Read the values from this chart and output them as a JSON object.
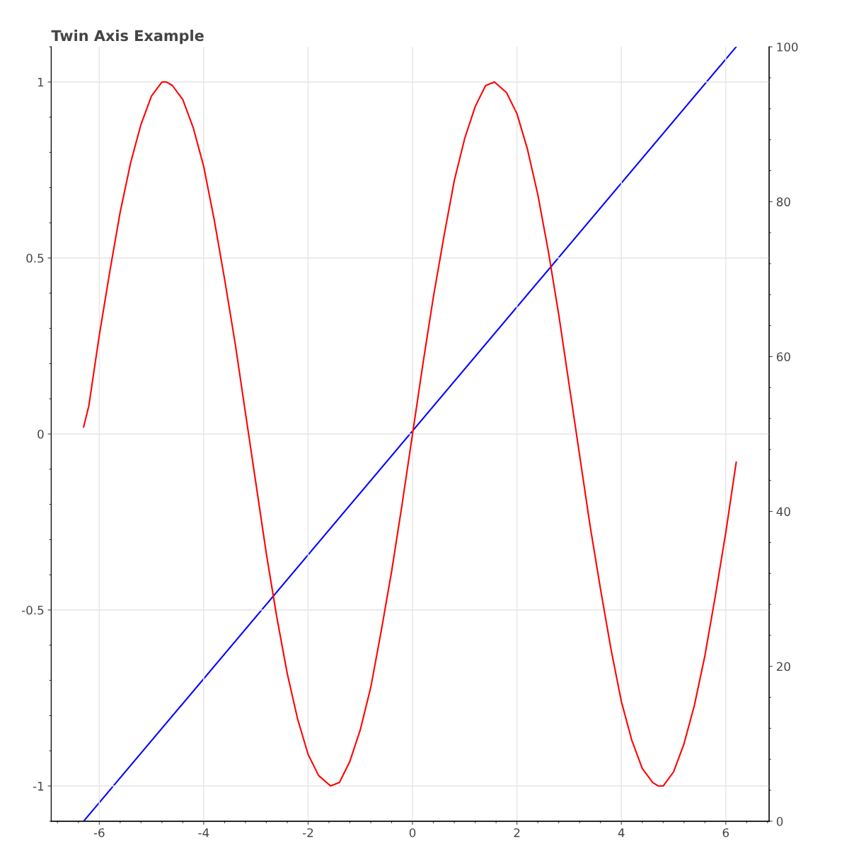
{
  "chart_data": {
    "type": "line",
    "title": "Twin Axis Example",
    "series": [
      {
        "color": "#ff0000",
        "x": [
          -6.3,
          -6.2,
          -6.0,
          -5.8,
          -5.6,
          -5.4,
          -5.2,
          -5.0,
          -4.8,
          -4.71,
          -4.6,
          -4.4,
          -4.2,
          -4.0,
          -3.8,
          -3.6,
          -3.4,
          -3.2,
          -3.0,
          -2.8,
          -2.6,
          -2.4,
          -2.2,
          -2.0,
          -1.8,
          -1.57,
          -1.4,
          -1.2,
          -1.0,
          -0.8,
          -0.6,
          -0.4,
          -0.2,
          0.0,
          0.2,
          0.4,
          0.6,
          0.8,
          1.0,
          1.2,
          1.4,
          1.57,
          1.8,
          2.0,
          2.2,
          2.4,
          2.6,
          2.8,
          3.0,
          3.2,
          3.4,
          3.6,
          3.8,
          4.0,
          4.2,
          4.4,
          4.6,
          4.71,
          4.8,
          5.0,
          5.2,
          5.4,
          5.6,
          5.8,
          6.0,
          6.2
        ],
        "values": [
          0.02,
          0.08,
          0.28,
          0.46,
          0.63,
          0.77,
          0.88,
          0.96,
          1.0,
          1.0,
          0.99,
          0.95,
          0.87,
          0.76,
          0.61,
          0.44,
          0.26,
          0.06,
          -0.14,
          -0.34,
          -0.52,
          -0.68,
          -0.81,
          -0.91,
          -0.97,
          -1.0,
          -0.99,
          -0.93,
          -0.84,
          -0.72,
          -0.56,
          -0.39,
          -0.2,
          0.0,
          0.2,
          0.39,
          0.56,
          0.72,
          0.84,
          0.93,
          0.99,
          1.0,
          0.97,
          0.91,
          0.81,
          0.68,
          0.52,
          0.34,
          0.14,
          -0.06,
          -0.26,
          -0.44,
          -0.61,
          -0.76,
          -0.87,
          -0.95,
          -0.99,
          -1.0,
          -1.0,
          -0.96,
          -0.88,
          -0.77,
          -0.63,
          -0.46,
          -0.28,
          -0.08
        ]
      },
      {
        "color": "#0000ff",
        "axis": "y2",
        "x": [
          -6.3,
          6.2
        ],
        "values": [
          0,
          100
        ]
      }
    ],
    "xlim": [
      -6.92,
      6.83
    ],
    "xticks": [
      -6,
      -4,
      -2,
      0,
      2,
      4,
      6
    ],
    "ylim": [
      -1.1,
      1.1
    ],
    "yticks": [
      -1,
      -0.5,
      0,
      0.5,
      1
    ],
    "y2lim": [
      0,
      100
    ],
    "y2ticks": [
      0,
      20,
      40,
      60,
      80,
      100
    ],
    "grid": true
  }
}
